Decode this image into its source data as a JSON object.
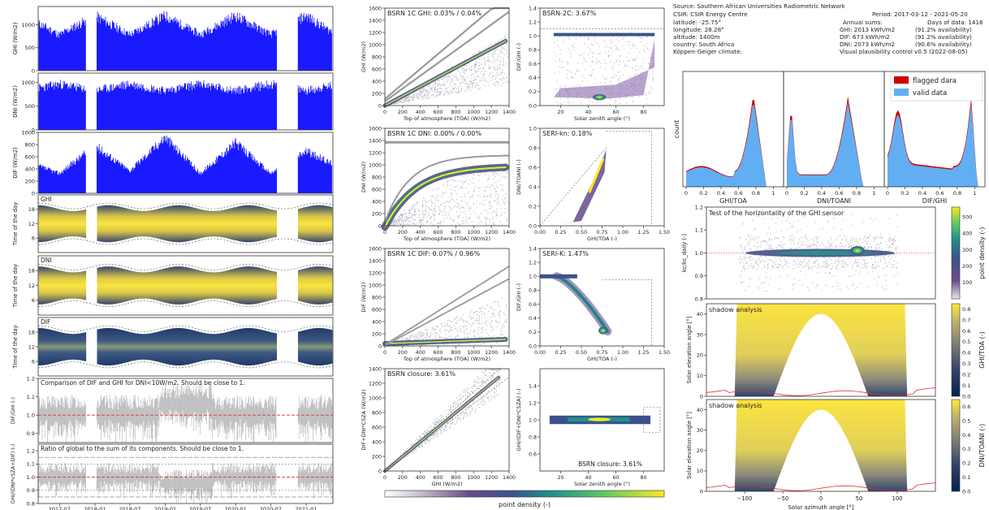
{
  "header": {
    "source": "Source: Southern African Universities Radiometric Network",
    "station": "CSIR: CSIR Energy Centre",
    "latitude": "latitude: -25.75°",
    "longitude": "longitude: 28.28°",
    "altitude": "altitude: 1400m",
    "country": "country: South Africa",
    "koppen": "Köppen-Geiger climate:",
    "period": "Period:  2017-03-12 - 2021-05-20",
    "annual_sums": "Annual sums:",
    "days_of_data": "Days of data: 1416",
    "ghi_sum": "GHI:   2013 kWh/m2",
    "dif_sum": "DIF:   673 kWh/m2",
    "dni_sum": "DNI:   2073 kWh/m2",
    "ghi_avail": "(91.2% availability)",
    "dif_avail": "(91.2% availability)",
    "dni_avail": "(90.6% availability)",
    "version": "Visual plausibility control v0.5 (2022-08-05)"
  },
  "colors": {
    "timeseries_blue": "#1a1aff",
    "viridis_dark": "#440154",
    "viridis_mid": "#21918c",
    "viridis_yellow": "#fde725",
    "flagged_red": "#cc0000",
    "valid_blue": "#62aef2",
    "reference_red": "#e03030"
  },
  "time_axis": {
    "ticks": [
      "2017-07",
      "2018-01",
      "2018-07",
      "2019-01",
      "2019-07",
      "2020-01",
      "2020-07",
      "2021-01"
    ]
  },
  "chart_data": [
    {
      "id": "ts_ghi",
      "type": "area",
      "ylabel": "GHI (W/m2)",
      "ylim": [
        0,
        1400
      ],
      "yticks": [
        0,
        500,
        1000
      ],
      "x": [
        "2017-03",
        "2017-07",
        "2018-01",
        "2018-07",
        "2019-01",
        "2019-07",
        "2020-01",
        "2020-07",
        "2021-01",
        "2021-05"
      ],
      "series": [
        {
          "values": [
            1150,
            850,
            1300,
            850,
            1300,
            850,
            1300,
            850,
            1300,
            950
          ]
        }
      ],
      "gaps": [
        [
          "2017-11-15",
          "2018-01-10"
        ],
        [
          "2020-08-01",
          "2020-11-20"
        ]
      ]
    },
    {
      "id": "ts_dni",
      "type": "area",
      "ylabel": "DNI (W/m2)",
      "ylim": [
        0,
        1200
      ],
      "yticks": [
        0,
        500,
        1000
      ],
      "x": [
        "2017-03",
        "2017-07",
        "2018-01",
        "2018-07",
        "2019-01",
        "2019-07",
        "2020-01",
        "2020-07",
        "2021-01",
        "2021-05"
      ],
      "series": [
        {
          "values": [
            950,
            1050,
            900,
            1050,
            900,
            1050,
            900,
            1050,
            900,
            1000
          ]
        }
      ],
      "gaps": [
        [
          "2017-11-15",
          "2018-01-10"
        ],
        [
          "2020-08-01",
          "2020-11-20"
        ]
      ]
    },
    {
      "id": "ts_dif",
      "type": "area",
      "ylabel": "DIF (W/m2)",
      "ylim": [
        0,
        1000
      ],
      "yticks": [
        0,
        200,
        400,
        600,
        800,
        1000
      ],
      "x": [
        "2017-03",
        "2017-07",
        "2018-01",
        "2018-07",
        "2019-01",
        "2019-07",
        "2020-01",
        "2020-07",
        "2021-01",
        "2021-05"
      ],
      "series": [
        {
          "values": [
            500,
            350,
            850,
            400,
            1000,
            350,
            900,
            350,
            750,
            550
          ]
        }
      ],
      "gaps": [
        [
          "2017-11-15",
          "2018-01-10"
        ],
        [
          "2020-08-01",
          "2020-11-20"
        ]
      ]
    },
    {
      "id": "hm_ghi",
      "type": "heatmap",
      "title": "GHI",
      "ylabel": "Time of the day",
      "ylim": [
        0,
        24
      ],
      "yticks": [
        6,
        12,
        18
      ]
    },
    {
      "id": "hm_dni",
      "type": "heatmap",
      "title": "DNI",
      "ylabel": "Time of the day",
      "ylim": [
        0,
        24
      ],
      "yticks": [
        6,
        12,
        18
      ]
    },
    {
      "id": "hm_dif",
      "type": "heatmap",
      "title": "DIF",
      "ylabel": "Time of the day",
      "ylim": [
        0,
        24
      ],
      "yticks": [
        6,
        12,
        18
      ]
    },
    {
      "id": "ratio_difghi",
      "type": "scatter",
      "title": "Comparison of DIF and GHI for DNI<10W/m2. Should be close to 1.",
      "ylabel": "DIF/GHI (-)",
      "ylim": [
        0.85,
        1.2
      ],
      "yticks": [
        0.9,
        1.0,
        1.1,
        1.2
      ],
      "reference": 1.0
    },
    {
      "id": "ratio_closure",
      "type": "scatter",
      "title": "Ratio of global to the sum of its components. Should be close to 1.",
      "ylabel": "GHI/(DNI*cSZA+DIF) (-)",
      "ylim": [
        0.8,
        1.25
      ],
      "yticks": [
        0.8,
        0.9,
        1.0,
        1.1,
        1.2
      ],
      "reference": 1.0
    },
    {
      "id": "sc_ghi",
      "type": "scatter",
      "title": "BSRN 1C GHI: 0.03% / 0.04%",
      "xlabel": "Top of atmosphere (TOA) (W/m2)",
      "ylabel": "GHI (W/m2)",
      "xlim": [
        0,
        1400
      ],
      "ylim": [
        0,
        1600
      ],
      "xticks": [
        0,
        200,
        400,
        600,
        800,
        1000,
        1200,
        1400
      ],
      "yticks": [
        0,
        200,
        400,
        600,
        800,
        1000,
        1200,
        1400,
        1600
      ]
    },
    {
      "id": "sc_dni",
      "type": "scatter",
      "title": "BSRN 1C DNI: 0.00% / 0.00%",
      "xlabel": "Top of atmosphere (TOA) (W/m2)",
      "ylabel": "DNI (W/m2)",
      "xlim": [
        0,
        1400
      ],
      "ylim": [
        0,
        1600
      ],
      "xticks": [
        0,
        200,
        400,
        600,
        800,
        1000,
        1200,
        1400
      ],
      "yticks": [
        0,
        200,
        400,
        600,
        800,
        1000,
        1200,
        1400,
        1600
      ]
    },
    {
      "id": "sc_dif",
      "type": "scatter",
      "title": "BSRN 1C DIF: 0.07% / 0.96%",
      "xlabel": "Top of atmosphere (TOA) (W/m2)",
      "ylabel": "DIF (W/m2)",
      "xlim": [
        0,
        1400
      ],
      "ylim": [
        0,
        1600
      ],
      "xticks": [
        0,
        200,
        400,
        600,
        800,
        1000,
        1200,
        1400
      ],
      "yticks": [
        0,
        200,
        400,
        600,
        800,
        1000,
        1200,
        1400,
        1600
      ]
    },
    {
      "id": "sc_closure",
      "type": "scatter",
      "title": "BSRN closure: 3.61%",
      "xlabel": "GHI (W/m2)",
      "ylabel": "DIF+DNI*CSZA (W/m2)",
      "xlim": [
        0,
        1400
      ],
      "ylim": [
        0,
        1400
      ],
      "xticks": [
        0,
        200,
        400,
        600,
        800,
        1000,
        1200,
        1400
      ],
      "yticks": [
        0,
        200,
        400,
        600,
        800,
        1000,
        1200,
        1400
      ]
    },
    {
      "id": "sc_bsrn2c",
      "type": "scatter",
      "title": "BSRN-2C: 3.67%",
      "xlabel": "Solar zenith angle (°)",
      "ylabel": "DIF/GHI (-)",
      "xlim": [
        5,
        95
      ],
      "ylim": [
        0,
        1.4
      ],
      "xticks": [
        20,
        40,
        60,
        80
      ],
      "yticks": [
        0.0,
        0.2,
        0.4,
        0.6,
        0.8,
        1.0,
        1.2,
        1.4
      ]
    },
    {
      "id": "sc_serikn",
      "type": "scatter",
      "title": "SERI-kn: 0.18%",
      "xlabel": "GHI/TOA (-)",
      "ylabel": "DNI/TOANI (-)",
      "xlim": [
        0,
        1.5
      ],
      "ylim": [
        0,
        1.0
      ],
      "xticks": [
        0.0,
        0.25,
        0.5,
        0.75,
        1.0,
        1.25,
        1.5
      ],
      "yticks": [
        0.0,
        0.2,
        0.4,
        0.6,
        0.8,
        1.0
      ]
    },
    {
      "id": "sc_serik",
      "type": "scatter",
      "title": "SERI-K: 1.47%",
      "xlabel": "GHI/TOA (-)",
      "ylabel": "DIF/GHI (-)",
      "xlim": [
        0,
        1.5
      ],
      "ylim": [
        0,
        1.4
      ],
      "xticks": [
        0.0,
        0.25,
        0.5,
        0.75,
        1.0,
        1.25,
        1.5
      ],
      "yticks": [
        0.0,
        0.2,
        0.4,
        0.6,
        0.8,
        1.0,
        1.2,
        1.4
      ]
    },
    {
      "id": "sc_closure_sza",
      "type": "scatter",
      "annotation": "BSRN closure: 3.61%",
      "xlabel": "Solar zenith angle (°)",
      "ylabel": "GHI/(DIF+DNI*CSZA) (-)",
      "xlim": [
        5,
        95
      ],
      "ylim": [
        0.4,
        1.6
      ],
      "xticks": [
        20,
        40,
        60,
        80
      ],
      "yticks": [
        0.6,
        0.8,
        1.0,
        1.2,
        1.4
      ]
    },
    {
      "id": "colorbar_main",
      "type": "heatmap",
      "label": "point density (-)"
    },
    {
      "id": "hist_ratios",
      "type": "area",
      "ylabel": "count",
      "panels": [
        "GHI/TOA",
        "DNI/TOANI",
        "DIF/GHI"
      ],
      "xticks": [
        0,
        0.2,
        0.4,
        0.6,
        0.8,
        1
      ],
      "series": [
        {
          "name": "flagged dara",
          "color": "#cc0000"
        },
        {
          "name": "valid data",
          "color": "#62aef2"
        }
      ]
    },
    {
      "id": "horiz",
      "type": "scatter",
      "title": "Test of the horizontality of the GHI sensor",
      "ylabel": "kc/kc_daily (-)",
      "ylim": [
        0.8,
        1.2
      ],
      "yticks": [
        0.8,
        0.9,
        1.0,
        1.1,
        1.2
      ],
      "colorbar": {
        "label": "point density (-)",
        "ticks": [
          100,
          200,
          300,
          400,
          500
        ]
      }
    },
    {
      "id": "shadow_ghi",
      "type": "heatmap",
      "title": "shadow analysis",
      "ylabel": "Solar elevation angle [°]",
      "ylim": [
        0,
        45
      ],
      "yticks": [
        0,
        10,
        20,
        30,
        40
      ],
      "colorbar": {
        "label": "GHI/TOA (-)",
        "ticks": [
          0.0,
          0.1,
          0.2,
          0.3,
          0.4,
          0.5,
          0.6,
          0.7,
          0.8
        ]
      }
    },
    {
      "id": "shadow_dni",
      "type": "heatmap",
      "title": "shadow analysis",
      "xlabel": "Solar azimuth angle [°]",
      "ylabel": "Solar elevation angle [°]",
      "xlim": [
        -150,
        150
      ],
      "ylim": [
        0,
        45
      ],
      "xticks": [
        -100,
        -50,
        0,
        50,
        100
      ],
      "yticks": [
        0,
        10,
        20,
        30,
        40
      ],
      "colorbar": {
        "label": "DNI/TOANI (-)",
        "ticks": [
          0.0,
          0.1,
          0.2,
          0.3,
          0.4,
          0.5,
          0.6
        ]
      }
    }
  ]
}
